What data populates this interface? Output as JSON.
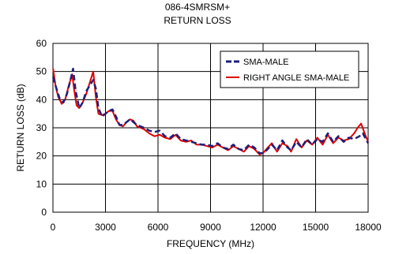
{
  "chart_data": {
    "type": "line",
    "title": "086-4SMRSM+",
    "subtitle": "RETURN LOSS",
    "xlabel": "FREQUENCY (MHz)",
    "ylabel": "RETURN LOSS (dB)",
    "xlim": [
      0,
      18000
    ],
    "ylim": [
      0,
      60
    ],
    "x_ticks": [
      0,
      3000,
      6000,
      9000,
      12000,
      15000,
      18000
    ],
    "y_ticks": [
      0,
      10,
      20,
      30,
      40,
      50,
      60
    ],
    "grid": true,
    "legend_position": "top-right",
    "series": [
      {
        "name": "SMA-MALE",
        "color": "#1f1f7a",
        "dash": true,
        "x": [
          10,
          200,
          400,
          600,
          800,
          1000,
          1150,
          1300,
          1500,
          1700,
          1900,
          2100,
          2300,
          2450,
          2600,
          2800,
          3000,
          3200,
          3400,
          3600,
          3800,
          4000,
          4200,
          4400,
          4600,
          4800,
          5000,
          5200,
          5500,
          5800,
          6100,
          6400,
          6700,
          7000,
          7300,
          7600,
          7900,
          8200,
          8500,
          8800,
          9100,
          9400,
          9700,
          10000,
          10300,
          10600,
          10900,
          11200,
          11500,
          11800,
          12000,
          12200,
          12500,
          12800,
          13100,
          13400,
          13600,
          13900,
          14200,
          14500,
          14800,
          15100,
          15400,
          15700,
          16000,
          16300,
          16600,
          16900,
          17200,
          17500,
          17700,
          18000
        ],
        "y": [
          48,
          44,
          40,
          39,
          42,
          47,
          51,
          43,
          37,
          39,
          43,
          45,
          47,
          44,
          37,
          34,
          35,
          36,
          36.5,
          34,
          31,
          31,
          32,
          33,
          32,
          31,
          30.5,
          30,
          29,
          28.5,
          29,
          27,
          26.5,
          28,
          26,
          25.5,
          25,
          24.5,
          24,
          24,
          23.5,
          24.5,
          23,
          22.5,
          24,
          22.5,
          22,
          24,
          23,
          21,
          21,
          22,
          24,
          22,
          25.5,
          23,
          22,
          25,
          23,
          26,
          24,
          26,
          25,
          28,
          25,
          27,
          25,
          26.5,
          26,
          27,
          28,
          24.5
        ]
      },
      {
        "name": "RIGHT ANGLE SMA-MALE",
        "color": "#e00000",
        "dash": false,
        "x": [
          10,
          150,
          300,
          500,
          700,
          900,
          1100,
          1200,
          1350,
          1500,
          1700,
          1900,
          2100,
          2300,
          2450,
          2600,
          2800,
          3000,
          3200,
          3400,
          3600,
          3800,
          4000,
          4200,
          4400,
          4600,
          4800,
          5000,
          5200,
          5500,
          5800,
          6100,
          6400,
          6700,
          7000,
          7300,
          7600,
          7900,
          8200,
          8500,
          8800,
          9100,
          9400,
          9700,
          10000,
          10300,
          10600,
          10900,
          11200,
          11500,
          11800,
          12000,
          12200,
          12500,
          12800,
          13100,
          13400,
          13600,
          13900,
          14200,
          14500,
          14800,
          15100,
          15400,
          15700,
          16000,
          16300,
          16600,
          16900,
          17200,
          17400,
          17600,
          17800,
          18000
        ],
        "y": [
          51,
          45,
          41,
          38.5,
          40,
          45,
          49,
          44,
          38,
          37,
          39,
          42,
          46,
          50,
          41,
          35,
          34.5,
          35,
          36,
          36,
          33,
          31,
          30.5,
          32,
          33,
          32.5,
          30.5,
          30,
          29.5,
          28,
          27,
          27.5,
          26.5,
          26,
          27.5,
          25.5,
          25,
          25.5,
          24,
          24,
          23.5,
          23,
          24,
          23,
          22,
          23.5,
          22.5,
          21.5,
          23.5,
          22.5,
          20.5,
          21,
          22.5,
          24.5,
          21.5,
          24.5,
          23.5,
          21.5,
          26,
          23,
          25.5,
          24,
          26.5,
          24,
          27.5,
          24.5,
          26.5,
          25.5,
          26,
          28,
          30,
          31.5,
          28,
          25
        ]
      }
    ]
  }
}
